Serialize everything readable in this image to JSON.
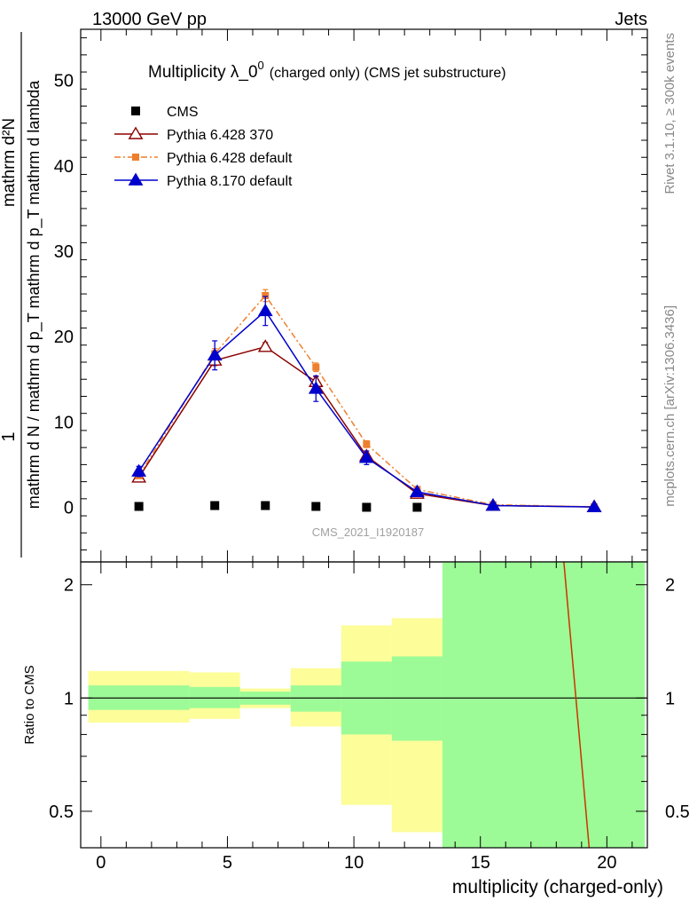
{
  "header": {
    "energy": "13000 GeV pp",
    "category": "Jets"
  },
  "side": {
    "rivet": "Rivet 3.1.10, ≥ 300k events",
    "mcplots": "mcplots.cern.ch [arXiv:1306.3436]"
  },
  "watermark": "CMS_2021_I1920187",
  "chart_data": [
    {
      "type": "line",
      "title": "Multiplicity λ_0⁰ (charged only) (CMS jet substructure)",
      "title_main": "Multiplicity λ_0",
      "title_sup": "0",
      "title_rest": "(charged only) (CMS jet substructure)",
      "ylabel_top": "1",
      "ylabel_numerator": "mathrm d²N",
      "ylabel_denominator": "mathrm d N / mathrm d p_T mathrm d p_T mathrm d lambda",
      "xlabel": "multiplicity (charged-only)",
      "xlim": [
        -0.8,
        21.6
      ],
      "ylim": [
        -6.4,
        56
      ],
      "y_ticks": [
        0,
        10,
        20,
        30,
        40,
        50
      ],
      "y_tick_labels": [
        "0",
        "10",
        "20",
        "30",
        "40",
        "50"
      ],
      "legend_placement": "top-left",
      "series": [
        {
          "name": "CMS",
          "color": "#000000",
          "marker": "square",
          "x": [
            1.5,
            4.5,
            6.5,
            8.5,
            10.5,
            12.5
          ],
          "y": [
            0.1,
            0.2,
            0.2,
            0.1,
            0.0,
            0.0
          ],
          "legend_label": "CMS"
        },
        {
          "name": "Pythia 6.428 370",
          "color": "#8b0000",
          "marker": "open-triangle",
          "x": [
            1.5,
            4.5,
            6.5,
            8.5,
            10.5,
            12.5,
            15.5,
            19.5
          ],
          "y": [
            3.5,
            17.2,
            18.8,
            14.7,
            6.0,
            1.6,
            0.2,
            0.05
          ],
          "err": [
            0.3,
            0.6,
            0.5,
            0.6,
            0.4,
            0.2,
            0.05,
            0.02
          ],
          "legend_label": "Pythia 6.428 370"
        },
        {
          "name": "Pythia 6.428 default",
          "color": "#ee7f2d",
          "marker": "square",
          "dash": true,
          "x": [
            1.5,
            4.5,
            6.5,
            8.5,
            10.5,
            12.5,
            15.5,
            19.5
          ],
          "y": [
            3.7,
            18.0,
            24.8,
            16.4,
            7.4,
            2.1,
            0.3,
            0.05
          ],
          "err": [
            0.3,
            0.6,
            0.7,
            0.5,
            0.4,
            0.2,
            0.05,
            0.02
          ],
          "legend_label": "Pythia 6.428 default"
        },
        {
          "name": "Pythia 8.170 default",
          "color": "#0000cc",
          "marker": "triangle",
          "x": [
            1.5,
            4.5,
            6.5,
            8.5,
            10.5,
            12.5,
            15.5,
            19.5
          ],
          "y": [
            4.2,
            17.8,
            23.0,
            13.9,
            5.8,
            1.8,
            0.2,
            0.03
          ],
          "err": [
            0.6,
            1.7,
            1.7,
            1.5,
            0.8,
            0.3,
            0.05,
            0.02
          ],
          "legend_label": "Pythia 8.170 default"
        }
      ]
    },
    {
      "type": "line",
      "ylabel": "Ratio to CMS",
      "xlabel": "multiplicity (charged-only)",
      "xlim": [
        -0.8,
        21.6
      ],
      "ylim": [
        0.4,
        2.3
      ],
      "log_y": true,
      "y_ticks": [
        0.5,
        1,
        2
      ],
      "y_tick_labels": [
        "0.5",
        "1",
        "2"
      ],
      "x_ticks": [
        0,
        5,
        10,
        15,
        20
      ],
      "x_tick_labels": [
        "0",
        "5",
        "10",
        "15",
        "20"
      ],
      "reference": 1,
      "bands": {
        "edges": [
          -0.5,
          3.5,
          5.5,
          7.5,
          9.5,
          11.5,
          13.5,
          21.5
        ],
        "inner_low": [
          0.93,
          0.94,
          0.96,
          0.92,
          0.8,
          0.77,
          0.0
        ],
        "inner_high": [
          1.08,
          1.07,
          1.04,
          1.08,
          1.25,
          1.29,
          10.0
        ],
        "outer_low": [
          0.86,
          0.88,
          0.94,
          0.84,
          0.52,
          0.44,
          0.0
        ],
        "outer_high": [
          1.18,
          1.17,
          1.06,
          1.2,
          1.56,
          1.63,
          10.0
        ],
        "inner_color": "#9cfb96",
        "outer_color": "#fdfd9a"
      },
      "ratio_line": {
        "color": "#cc3300",
        "x": [
          18.3,
          19.3
        ],
        "y": [
          2.4,
          0.38
        ]
      }
    }
  ]
}
